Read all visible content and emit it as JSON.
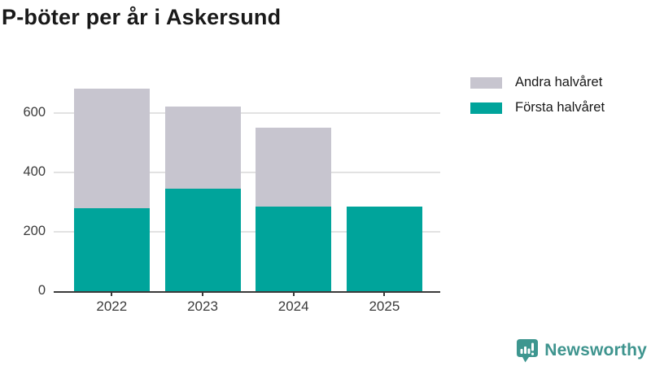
{
  "header": {
    "title": "P-böter per år i Askersund"
  },
  "chart_data": {
    "type": "bar",
    "stacked": true,
    "title": "P-böter per år i Askersund",
    "categories": [
      "2022",
      "2023",
      "2024",
      "2025"
    ],
    "series": [
      {
        "name": "Första halvåret",
        "color": "#00A49B",
        "values": [
          280,
          345,
          285,
          285
        ]
      },
      {
        "name": "Andra halvåret",
        "color": "#C7C5CF",
        "values": [
          400,
          275,
          265,
          0
        ]
      }
    ],
    "yticks": [
      0,
      200,
      400,
      600
    ],
    "ylim": [
      0,
      760
    ],
    "xlabel": "",
    "ylabel": "",
    "grid": true,
    "legend_position": "top-right",
    "legend_order": [
      "Andra halvåret",
      "Första halvåret"
    ],
    "colors": {
      "grid": "#E2E2E2",
      "axis": "#3A3A3A",
      "text": "#3B3B3B",
      "title_text": "#191919"
    }
  },
  "footer": {
    "brand": "Newsworthy",
    "brand_color": "#3E948E",
    "icon": "newsworthy-speech-bubble-chart-icon"
  }
}
